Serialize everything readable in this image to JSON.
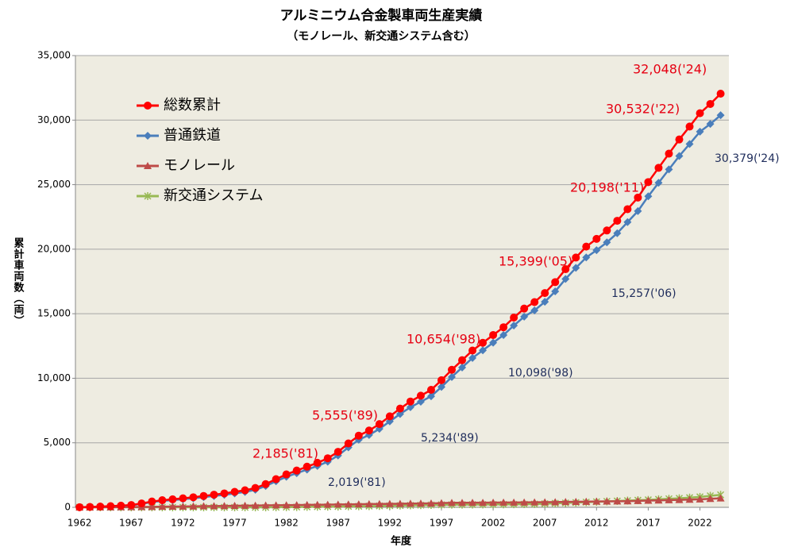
{
  "chart_data": {
    "type": "line",
    "title": "アルミニウム合金製車両生産実績",
    "subtitle": "（モノレール、新交通システム含む）",
    "x_label": "年度",
    "y_label": "累計車両数（両）",
    "x": [
      1962,
      1963,
      1964,
      1965,
      1966,
      1967,
      1968,
      1969,
      1970,
      1971,
      1972,
      1973,
      1974,
      1975,
      1976,
      1977,
      1978,
      1979,
      1980,
      1981,
      1982,
      1983,
      1984,
      1985,
      1986,
      1987,
      1988,
      1989,
      1990,
      1991,
      1992,
      1993,
      1994,
      1995,
      1996,
      1997,
      1998,
      1999,
      2000,
      2001,
      2002,
      2003,
      2004,
      2005,
      2006,
      2007,
      2008,
      2009,
      2010,
      2011,
      2012,
      2013,
      2014,
      2015,
      2016,
      2017,
      2018,
      2019,
      2020,
      2021,
      2022,
      2023,
      2024
    ],
    "series": [
      {
        "name": "総数累計",
        "color": "#ff0000",
        "marker": "circle",
        "values": [
          10,
          30,
          60,
          90,
          130,
          180,
          300,
          450,
          550,
          620,
          700,
          780,
          880,
          980,
          1080,
          1200,
          1320,
          1500,
          1800,
          2185,
          2550,
          2850,
          3150,
          3450,
          3800,
          4300,
          4950,
          5555,
          5950,
          6450,
          7050,
          7650,
          8200,
          8650,
          9100,
          9850,
          10654,
          11400,
          12150,
          12750,
          13350,
          13950,
          14700,
          15399,
          15900,
          16600,
          17450,
          18450,
          19350,
          20198,
          20800,
          21450,
          22200,
          23100,
          24000,
          25200,
          26300,
          27400,
          28500,
          29500,
          30532,
          31250,
          32048
        ]
      },
      {
        "name": "普通鉄道",
        "color": "#4a7ebb",
        "marker": "diamond",
        "values": [
          10,
          30,
          55,
          80,
          115,
          160,
          270,
          410,
          500,
          560,
          630,
          700,
          790,
          880,
          970,
          1080,
          1190,
          1360,
          1650,
          2019,
          2365,
          2645,
          2925,
          3205,
          3535,
          4015,
          4645,
          5234,
          5605,
          6080,
          6655,
          7230,
          7755,
          8180,
          8605,
          9325,
          10098,
          10835,
          11575,
          12165,
          12755,
          13345,
          14085,
          14769,
          15257,
          15920,
          16730,
          17690,
          18550,
          19358,
          19920,
          20530,
          21240,
          22100,
          22950,
          24100,
          25140,
          26180,
          27220,
          28150,
          29102,
          29700,
          30379
        ]
      },
      {
        "name": "モノレール",
        "color": "#be4b48",
        "marker": "triangle",
        "values": [
          0,
          0,
          5,
          10,
          15,
          20,
          30,
          40,
          50,
          60,
          70,
          80,
          90,
          100,
          110,
          120,
          130,
          140,
          150,
          160,
          170,
          180,
          190,
          200,
          210,
          220,
          230,
          240,
          250,
          260,
          270,
          280,
          290,
          300,
          310,
          330,
          350,
          355,
          360,
          365,
          370,
          375,
          380,
          385,
          390,
          400,
          410,
          420,
          430,
          440,
          450,
          460,
          470,
          480,
          500,
          520,
          540,
          560,
          580,
          600,
          620,
          660,
          700
        ]
      },
      {
        "name": "新交通システム",
        "color": "#98b954",
        "marker": "star",
        "values": [
          0,
          0,
          0,
          0,
          0,
          0,
          0,
          0,
          0,
          0,
          0,
          0,
          0,
          0,
          0,
          0,
          0,
          0,
          0,
          6,
          15,
          25,
          35,
          45,
          55,
          65,
          75,
          81,
          95,
          110,
          125,
          140,
          155,
          170,
          185,
          195,
          206,
          210,
          215,
          220,
          225,
          230,
          235,
          245,
          253,
          280,
          310,
          340,
          370,
          400,
          430,
          460,
          490,
          520,
          550,
          580,
          620,
          660,
          700,
          750,
          810,
          890,
          969
        ]
      }
    ],
    "xlim": [
      1961.6,
      2024.8
    ],
    "xticks": [
      1962,
      1967,
      1972,
      1977,
      1982,
      1987,
      1992,
      1997,
      2002,
      2007,
      2012,
      2017,
      2022
    ],
    "ylim": [
      0,
      35000
    ],
    "yticks": [
      0,
      {
        "value": 5000,
        "label": "5,000"
      },
      {
        "value": 10000,
        "label": "10,000"
      },
      {
        "value": 15000,
        "label": "15,000"
      },
      {
        "value": 20000,
        "label": "20,000"
      },
      {
        "value": 25000,
        "label": "25,000"
      },
      {
        "value": 30000,
        "label": "30,000"
      },
      {
        "value": 35000,
        "label": "35,000"
      }
    ],
    "grid": true,
    "annotations": [
      {
        "text": "32,048('24)",
        "color": "#e60012"
      },
      {
        "text": "30,532('22)",
        "color": "#e60012"
      },
      {
        "text": "30,379('24)",
        "color": "#1f2d5c"
      },
      {
        "text": "20,198('11)",
        "color": "#e60012"
      },
      {
        "text": "15,399('05)",
        "color": "#e60012"
      },
      {
        "text": "15,257('06)",
        "color": "#1f2d5c"
      },
      {
        "text": "10,654('98)",
        "color": "#e60012"
      },
      {
        "text": "10,098('98)",
        "color": "#1f2d5c"
      },
      {
        "text": "5,555('89)",
        "color": "#e60012"
      },
      {
        "text": "5,234('89)",
        "color": "#1f2d5c"
      },
      {
        "text": "2,185('81)",
        "color": "#e60012"
      },
      {
        "text": "2,019('81)",
        "color": "#1f2d5c"
      }
    ]
  }
}
